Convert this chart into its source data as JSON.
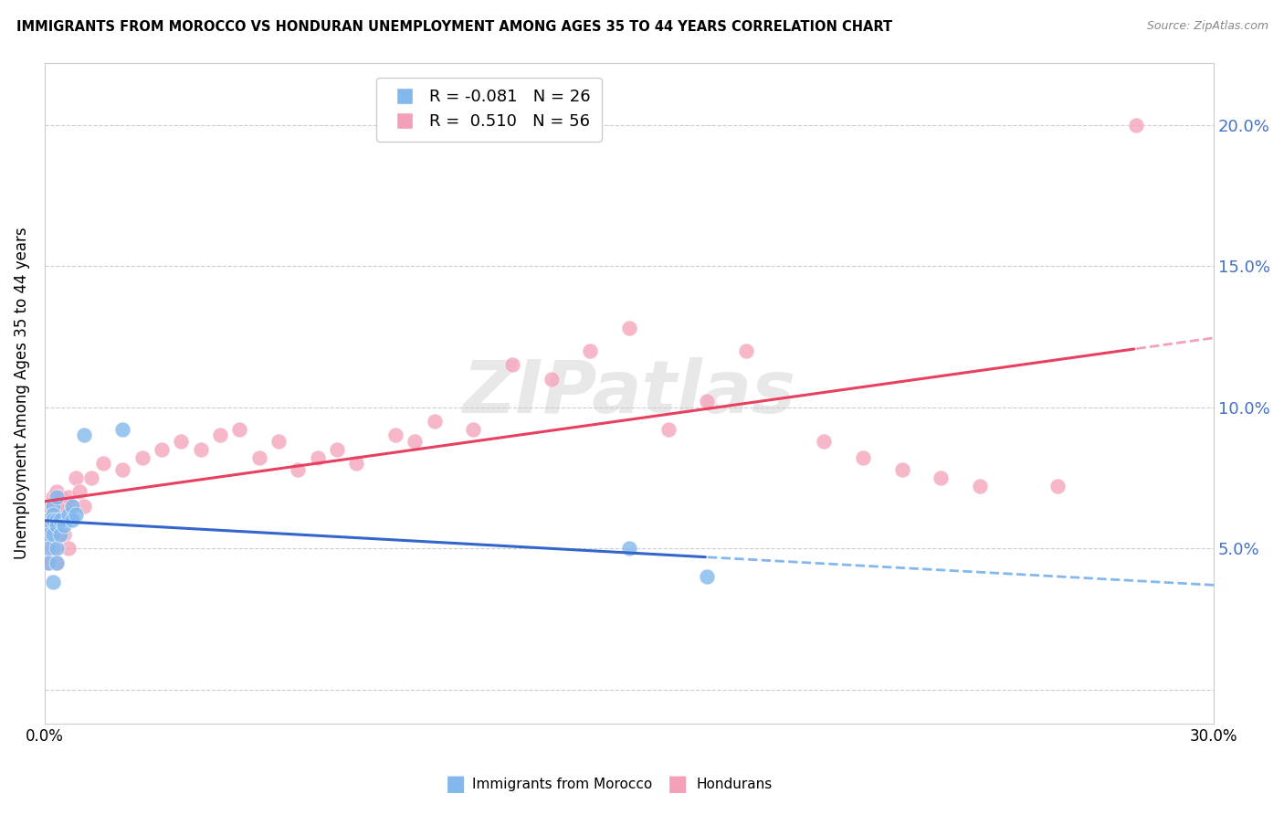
{
  "title": "IMMIGRANTS FROM MOROCCO VS HONDURAN UNEMPLOYMENT AMONG AGES 35 TO 44 YEARS CORRELATION CHART",
  "source": "Source: ZipAtlas.com",
  "ylabel": "Unemployment Among Ages 35 to 44 years",
  "legend_label1": "Immigrants from Morocco",
  "legend_label2": "Hondurans",
  "legend_R1": "-0.081",
  "legend_N1": "26",
  "legend_R2": "0.510",
  "legend_N2": "56",
  "watermark": "ZIPatlas",
  "xlim": [
    0.0,
    0.3
  ],
  "ylim": [
    -0.012,
    0.222
  ],
  "yticks": [
    0.0,
    0.05,
    0.1,
    0.15,
    0.2
  ],
  "ytick_labels_right": [
    "",
    "5.0%",
    "10.0%",
    "15.0%",
    "20.0%"
  ],
  "blue_color": "#82B8ED",
  "pink_color": "#F4A0B8",
  "blue_line_color": "#3366CC",
  "pink_line_color": "#E84060",
  "morocco_x": [
    0.001,
    0.001,
    0.001,
    0.001,
    0.001,
    0.002,
    0.002,
    0.002,
    0.002,
    0.002,
    0.003,
    0.003,
    0.003,
    0.003,
    0.003,
    0.004,
    0.004,
    0.005,
    0.006,
    0.007,
    0.007,
    0.008,
    0.01,
    0.02,
    0.15,
    0.17
  ],
  "morocco_y": [
    0.06,
    0.058,
    0.055,
    0.05,
    0.045,
    0.065,
    0.062,
    0.06,
    0.055,
    0.038,
    0.068,
    0.06,
    0.058,
    0.05,
    0.045,
    0.06,
    0.055,
    0.058,
    0.062,
    0.065,
    0.06,
    0.062,
    0.09,
    0.092,
    0.05,
    0.04
  ],
  "honduran_x": [
    0.001,
    0.001,
    0.001,
    0.001,
    0.002,
    0.002,
    0.002,
    0.002,
    0.003,
    0.003,
    0.003,
    0.003,
    0.003,
    0.004,
    0.004,
    0.005,
    0.005,
    0.006,
    0.006,
    0.007,
    0.008,
    0.009,
    0.01,
    0.012,
    0.015,
    0.02,
    0.025,
    0.03,
    0.035,
    0.04,
    0.045,
    0.05,
    0.055,
    0.06,
    0.065,
    0.07,
    0.075,
    0.08,
    0.09,
    0.095,
    0.1,
    0.11,
    0.12,
    0.13,
    0.14,
    0.15,
    0.16,
    0.17,
    0.18,
    0.2,
    0.21,
    0.22,
    0.23,
    0.24,
    0.26,
    0.28
  ],
  "honduran_y": [
    0.065,
    0.06,
    0.058,
    0.045,
    0.068,
    0.065,
    0.06,
    0.05,
    0.07,
    0.065,
    0.06,
    0.058,
    0.045,
    0.068,
    0.055,
    0.065,
    0.055,
    0.068,
    0.05,
    0.065,
    0.075,
    0.07,
    0.065,
    0.075,
    0.08,
    0.078,
    0.082,
    0.085,
    0.088,
    0.085,
    0.09,
    0.092,
    0.082,
    0.088,
    0.078,
    0.082,
    0.085,
    0.08,
    0.09,
    0.088,
    0.095,
    0.092,
    0.115,
    0.11,
    0.12,
    0.128,
    0.092,
    0.102,
    0.12,
    0.088,
    0.082,
    0.078,
    0.075,
    0.072,
    0.072,
    0.2
  ]
}
